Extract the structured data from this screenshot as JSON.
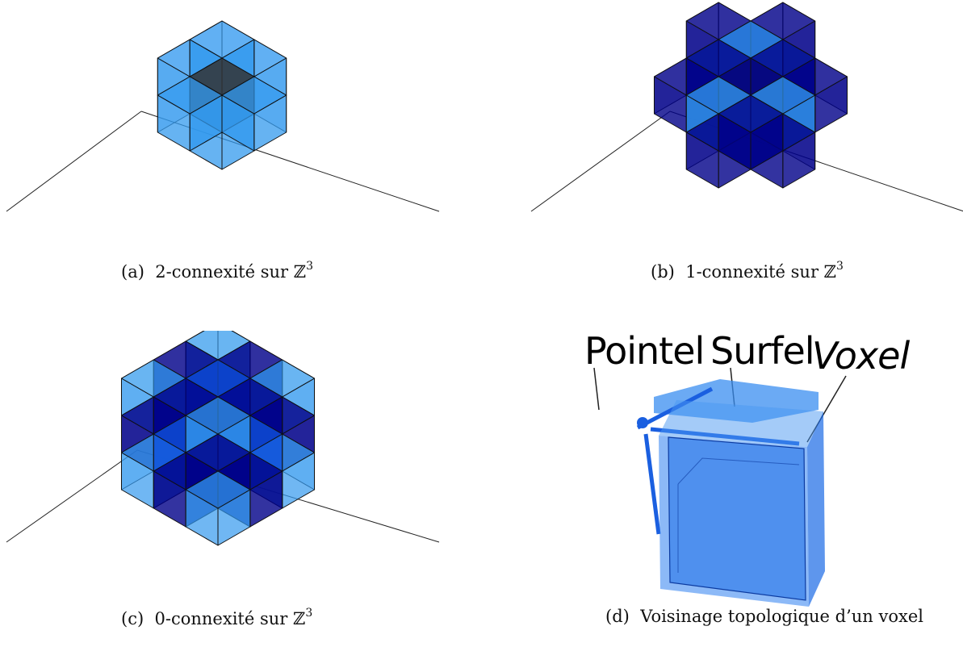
{
  "figures": [
    {
      "id": "a",
      "letter": "(a)",
      "text": "2-connexité sur",
      "math": "ℤ",
      "sup": "3"
    },
    {
      "id": "b",
      "letter": "(b)",
      "text": "1-connexité sur",
      "math": "ℤ",
      "sup": "3"
    },
    {
      "id": "c",
      "letter": "(c)",
      "text": "0-connexité sur",
      "math": "ℤ",
      "sup": "3"
    },
    {
      "id": "d",
      "letter": "(d)",
      "text": "Voisinage topologique d’un voxel",
      "math": "",
      "sup": ""
    }
  ],
  "voxel_labels": {
    "pointel": "Pointel",
    "surfel": "Surfel",
    "voxel": "Voxel"
  },
  "colors": {
    "light_cube": "#3399ee",
    "dark_cube": "#000088",
    "mid_cube": "#1155dd",
    "center_cube": "#333333",
    "edge": "#111111"
  }
}
